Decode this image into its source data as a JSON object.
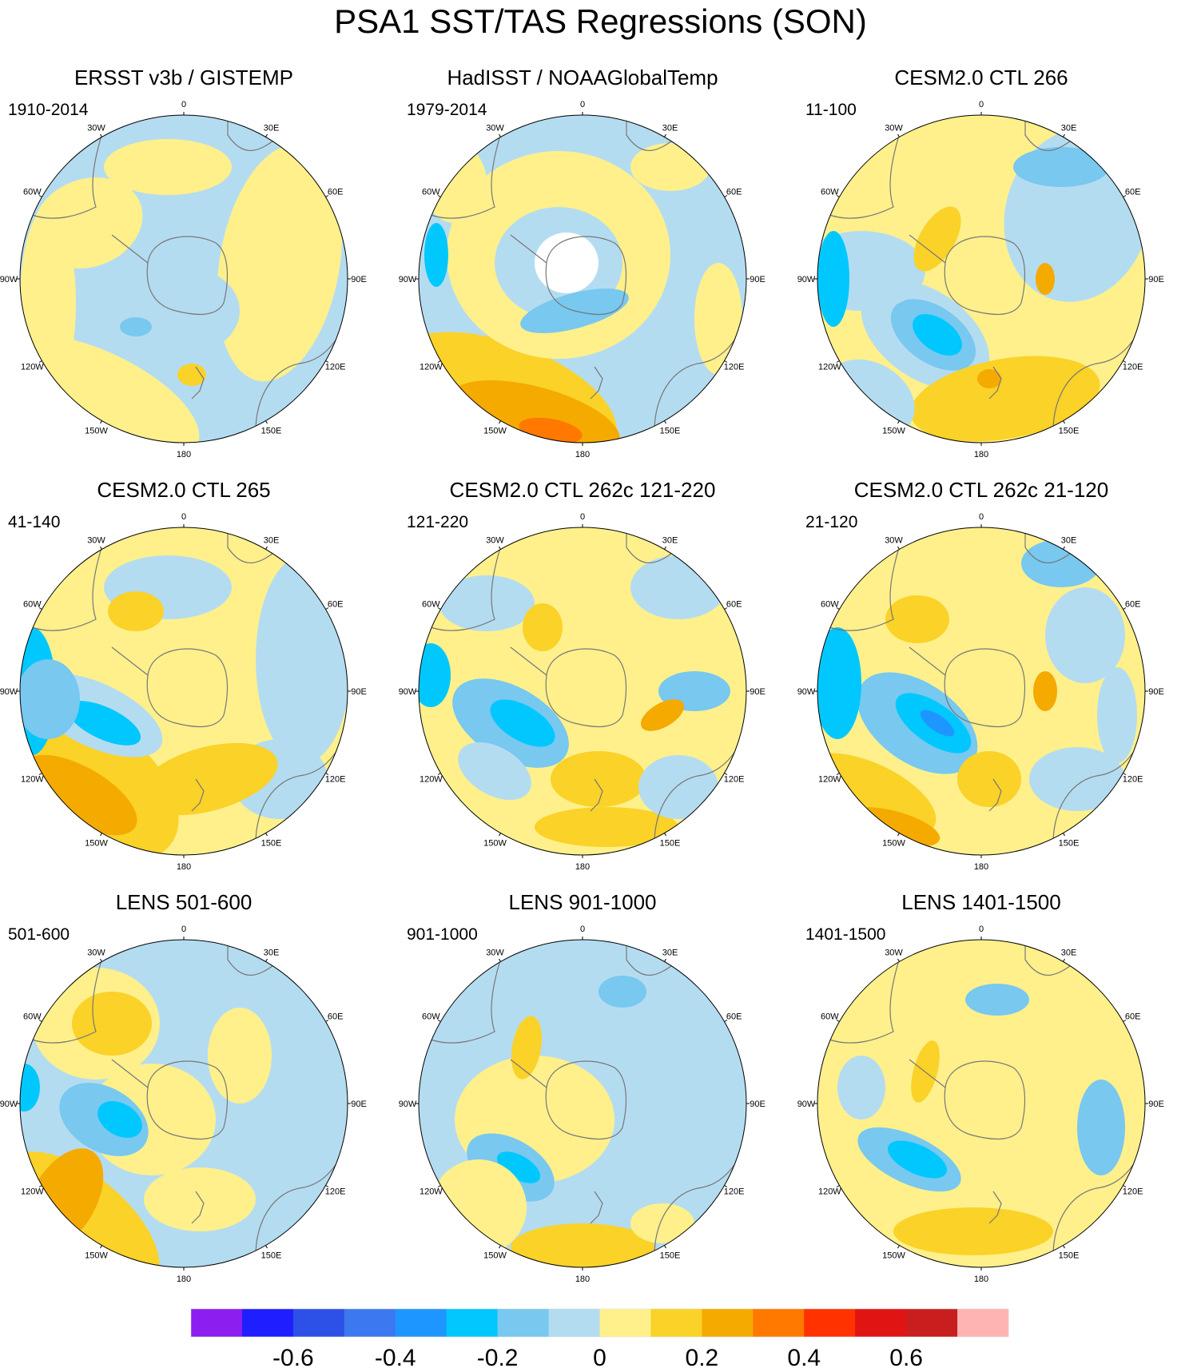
{
  "title": "PSA1 SST/TAS Regressions (SON)",
  "longitude_labels": [
    "0",
    "30E",
    "60E",
    "90E",
    "120E",
    "150E",
    "180",
    "150W",
    "120W",
    "90W",
    "60W",
    "30W"
  ],
  "panels": [
    {
      "title": "ERSST v3b / GISTEMP",
      "period": "1910-2014",
      "pattern": "obs_ersst"
    },
    {
      "title": "HadISST / NOAAGlobalTemp",
      "period": "1979-2014",
      "pattern": "obs_hadisst"
    },
    {
      "title": "CESM2.0 CTL 266",
      "period": "11-100",
      "pattern": "model_a"
    },
    {
      "title": "CESM2.0 CTL 265",
      "period": "41-140",
      "pattern": "model_b"
    },
    {
      "title": "CESM2.0 CTL 262c 121-220",
      "period": "121-220",
      "pattern": "model_c"
    },
    {
      "title": "CESM2.0 CTL 262c 21-120",
      "period": "21-120",
      "pattern": "model_d"
    },
    {
      "title": "LENS 501-600",
      "period": "501-600",
      "pattern": "lens_a"
    },
    {
      "title": "LENS 901-1000",
      "period": "901-1000",
      "pattern": "lens_b"
    },
    {
      "title": "LENS 1401-1500",
      "period": "1401-1500",
      "pattern": "lens_c"
    }
  ],
  "colorbar": {
    "colors": [
      "#8c1ef0",
      "#1e1eff",
      "#2d50e6",
      "#3c78f0",
      "#1e96ff",
      "#00c8ff",
      "#78c8f0",
      "#b4dcf0",
      "#fff08c",
      "#fad228",
      "#f5aa00",
      "#ff7800",
      "#ff3200",
      "#e11414",
      "#c81e1e",
      "#ffb4b4"
    ],
    "labels": [
      "-0.6",
      "-0.4",
      "-0.2",
      "0",
      "0.2",
      "0.4",
      "0.6"
    ]
  }
}
